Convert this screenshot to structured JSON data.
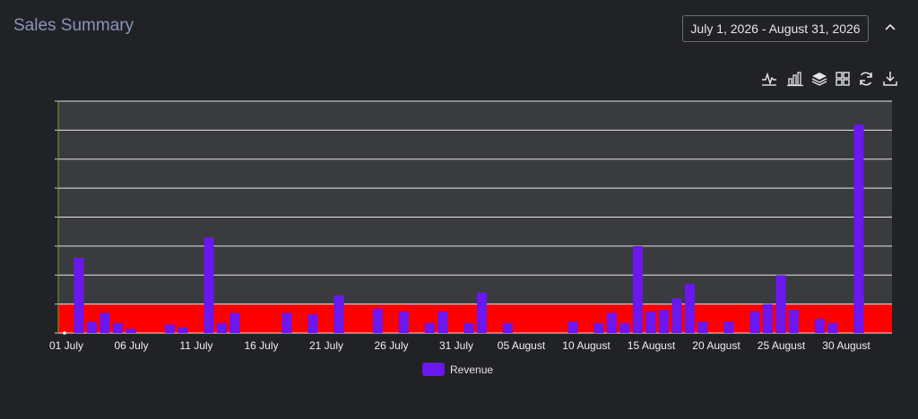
{
  "header": {
    "title": "Sales Summary",
    "date_range": "July 1, 2026 - August 31, 2026"
  },
  "toolbar": {
    "icons": [
      "line-chart-icon",
      "bar-chart-icon",
      "stack-icon",
      "grid-icon",
      "refresh-icon",
      "download-icon"
    ]
  },
  "colors": {
    "bar": "#6a17f0",
    "threshold_band": "#ff0000",
    "plot_bg": "#3a3b3f",
    "gridline": "#e8e8e8"
  },
  "chart_data": {
    "type": "bar",
    "x": [
      "01 July",
      "02 July",
      "03 July",
      "04 July",
      "05 July",
      "06 July",
      "07 July",
      "08 July",
      "09 July",
      "10 July",
      "11 July",
      "12 July",
      "13 July",
      "14 July",
      "15 July",
      "16 July",
      "17 July",
      "18 July",
      "19 July",
      "20 July",
      "21 July",
      "22 July",
      "23 July",
      "24 July",
      "25 July",
      "26 July",
      "27 July",
      "28 July",
      "29 July",
      "30 July",
      "31 July",
      "01 August",
      "02 August",
      "03 August",
      "04 August",
      "05 August",
      "06 August",
      "07 August",
      "08 August",
      "09 August",
      "10 August",
      "11 August",
      "12 August",
      "13 August",
      "14 August",
      "15 August",
      "16 August",
      "17 August",
      "18 August",
      "19 August",
      "20 August",
      "21 August",
      "22 August",
      "23 August",
      "24 August",
      "25 August",
      "26 August",
      "27 August",
      "28 August",
      "29 August",
      "30 August"
    ],
    "x_tick_labels": [
      "01 July",
      "06 July",
      "11 July",
      "16 July",
      "21 July",
      "26 July",
      "31 July",
      "05 August",
      "10 August",
      "15 August",
      "20 August",
      "25 August",
      "30 August"
    ],
    "series": [
      {
        "name": "Revenue",
        "values": [
          2.6,
          0.4,
          0.7,
          0.35,
          0.15,
          0,
          0,
          0.3,
          0.2,
          0,
          3.3,
          0.35,
          0.7,
          0,
          0,
          0,
          0.7,
          0,
          0.65,
          0,
          1.3,
          0,
          0,
          0.85,
          0,
          0.75,
          0,
          0.35,
          0.75,
          0,
          0.35,
          1.4,
          0,
          0.35,
          0,
          0,
          0,
          0,
          0.4,
          0,
          0.35,
          0.7,
          0.35,
          3.0,
          0.75,
          0.8,
          1.2,
          1.7,
          0.4,
          0,
          0.4,
          0,
          0.75,
          1.0,
          2.0,
          0.8,
          0,
          0.5,
          0.35,
          0,
          7.2
        ]
      }
    ],
    "ylim": [
      0,
      8
    ],
    "y_gridlines": 8,
    "threshold_band": [
      0,
      1
    ],
    "grid": true,
    "legend": "bottom-center",
    "xlabel": "",
    "ylabel": ""
  }
}
